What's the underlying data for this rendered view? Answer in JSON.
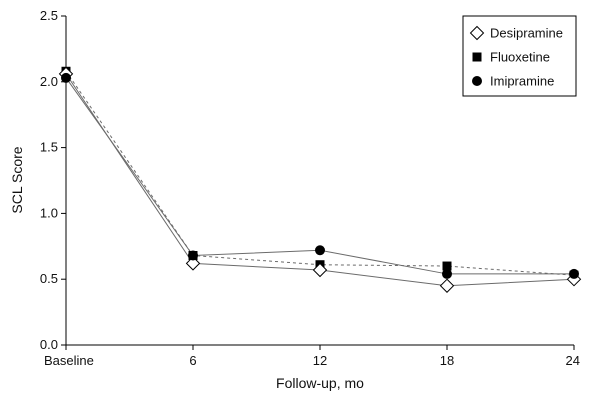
{
  "chart_data": {
    "type": "line",
    "categories": [
      "Baseline",
      "6",
      "12",
      "18",
      "24"
    ],
    "x": [
      0,
      6,
      12,
      18,
      24
    ],
    "xlabel": "Follow-up, mo",
    "ylabel": "SCL Score",
    "ylim": [
      0.0,
      2.5
    ],
    "yticks": [
      "0.0",
      "0.5",
      "1.0",
      "1.5",
      "2.0",
      "2.5"
    ],
    "grid": false,
    "legend_position": "top-right",
    "series": [
      {
        "name": "Desipramine",
        "marker": "diamond-open",
        "line": "solid",
        "color": "#000000",
        "values": [
          2.06,
          0.62,
          0.57,
          0.45,
          0.5
        ]
      },
      {
        "name": "Fluoxetine",
        "marker": "square-filled",
        "line": "dashed",
        "color": "#000000",
        "values": [
          2.08,
          0.68,
          0.61,
          0.6,
          0.53
        ]
      },
      {
        "name": "Imipramine",
        "marker": "circle-filled",
        "line": "solid",
        "color": "#000000",
        "values": [
          2.03,
          0.68,
          0.72,
          0.54,
          0.54
        ]
      }
    ]
  }
}
